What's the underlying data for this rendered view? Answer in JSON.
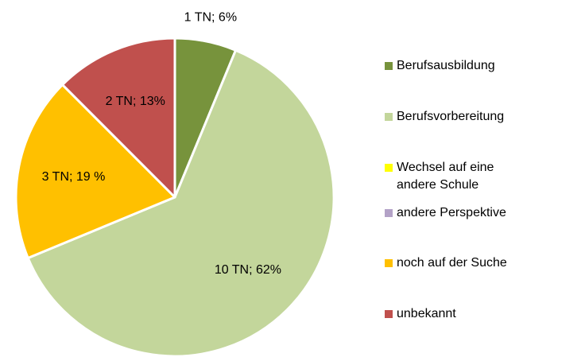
{
  "chart_data": {
    "type": "pie",
    "categories": [
      "Berufsausbildung",
      "Berufsvorbereitung",
      "Wechsel auf eine andere Schule",
      "andere Perspektive",
      "noch auf der Suche",
      "unbekannt"
    ],
    "values": [
      1,
      10,
      0,
      0,
      3,
      2
    ],
    "value_labels": [
      "1 TN; 6%",
      "10 TN; 62%",
      null,
      null,
      "3 TN; 19 %",
      "2 TN; 13%"
    ],
    "colors": [
      "#77933c",
      "#c3d69b",
      "#ffff00",
      "#b3a2c7",
      "#ffc000",
      "#c0504d"
    ],
    "legend": "right"
  }
}
